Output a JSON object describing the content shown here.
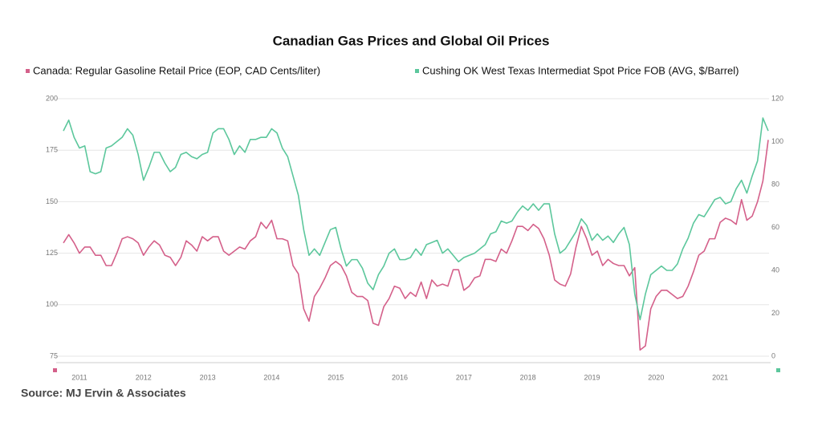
{
  "chart_data": {
    "type": "line",
    "title": "Canadian Gas Prices and Global Oil Prices",
    "source": "Source: MJ Ervin & Associates",
    "categories": [
      null,
      null,
      null,
      "2011",
      null,
      null,
      null,
      null,
      null,
      null,
      null,
      null,
      null,
      null,
      null,
      "2012",
      null,
      null,
      null,
      null,
      null,
      null,
      null,
      null,
      null,
      null,
      null,
      "2013",
      null,
      null,
      null,
      null,
      null,
      null,
      null,
      null,
      null,
      null,
      null,
      "2014",
      null,
      null,
      null,
      null,
      null,
      null,
      null,
      null,
      null,
      null,
      null,
      "2015",
      null,
      null,
      null,
      null,
      null,
      null,
      null,
      null,
      null,
      null,
      null,
      "2016",
      null,
      null,
      null,
      null,
      null,
      null,
      null,
      null,
      null,
      null,
      null,
      "2017",
      null,
      null,
      null,
      null,
      null,
      null,
      null,
      null,
      null,
      null,
      null,
      "2018",
      null,
      null,
      null,
      null,
      null,
      null,
      null,
      null,
      null,
      null,
      null,
      "2019",
      null,
      null,
      null,
      null,
      null,
      null,
      null,
      null,
      null,
      null,
      null,
      "2020",
      null,
      null,
      null,
      null,
      null,
      null,
      null,
      null,
      null,
      null,
      null,
      "2021",
      null,
      null,
      null,
      null,
      null,
      null,
      null,
      null,
      null
    ],
    "ylim": [
      75,
      200
    ],
    "yticks": [
      75,
      100,
      125,
      150,
      175,
      200
    ],
    "y2lim": [
      0,
      120
    ],
    "y2ticks": [
      0,
      20,
      40,
      60,
      80,
      100,
      120
    ],
    "grid": true,
    "series": [
      {
        "name": "Canada: Regular Gasoline Retail Price (EOP, CAD Cents/liter)",
        "color": "#d4608a",
        "values": [
          130,
          134,
          130,
          125,
          128,
          128,
          124,
          124,
          119,
          119,
          125,
          132,
          133,
          132,
          130,
          124,
          128,
          131,
          129,
          124,
          123,
          119,
          123,
          131,
          129,
          126,
          133,
          131,
          133,
          133,
          126,
          124,
          126,
          128,
          127,
          131,
          133,
          140,
          137,
          141,
          132,
          132,
          131,
          119,
          115,
          98,
          92,
          104,
          108,
          113,
          119,
          121,
          119,
          114,
          106,
          104,
          104,
          102,
          91,
          90,
          99,
          103,
          109,
          108,
          103,
          106,
          104,
          111,
          103,
          112,
          109,
          110,
          109,
          117,
          117,
          107,
          109,
          113,
          114,
          122,
          122,
          121,
          127,
          125,
          131,
          138,
          138,
          136,
          139,
          137,
          132,
          124,
          112,
          110,
          109,
          115,
          128,
          138,
          132,
          124,
          126,
          119,
          122,
          120,
          119,
          119,
          114,
          118,
          78,
          80,
          98,
          104,
          107,
          107,
          105,
          103,
          104,
          109,
          116,
          124,
          126,
          132,
          132,
          140,
          142,
          141,
          139,
          151,
          141,
          143,
          150,
          160,
          180
        ]
      },
      {
        "name": "Cushing OK West Texas Intermediat Spot Price FOB (AVG, $/Barrel)",
        "color": "#5cc79c",
        "axis": "y2",
        "values": [
          105,
          110,
          102,
          97,
          98,
          86,
          85,
          86,
          97,
          98,
          100,
          102,
          106,
          103,
          94,
          82,
          88,
          95,
          95,
          90,
          86,
          88,
          94,
          95,
          93,
          92,
          94,
          95,
          104,
          106,
          106,
          101,
          94,
          98,
          95,
          101,
          101,
          102,
          102,
          106,
          104,
          97,
          93,
          84,
          75,
          59,
          47,
          50,
          47,
          53,
          59,
          60,
          50,
          42,
          45,
          45,
          41,
          34,
          31,
          38,
          42,
          48,
          50,
          45,
          45,
          46,
          50,
          47,
          52,
          53,
          54,
          48,
          50,
          47,
          44,
          46,
          47,
          48,
          50,
          52,
          57,
          58,
          63,
          62,
          63,
          67,
          70,
          68,
          71,
          68,
          71,
          71,
          57,
          48,
          50,
          54,
          58,
          64,
          61,
          54,
          57,
          54,
          56,
          53,
          57,
          60,
          52,
          29,
          17,
          29,
          38,
          40,
          42,
          40,
          40,
          43,
          50,
          55,
          62,
          66,
          65,
          69,
          73,
          74,
          71,
          72,
          78,
          82,
          76,
          84,
          91,
          111,
          105
        ]
      }
    ]
  }
}
